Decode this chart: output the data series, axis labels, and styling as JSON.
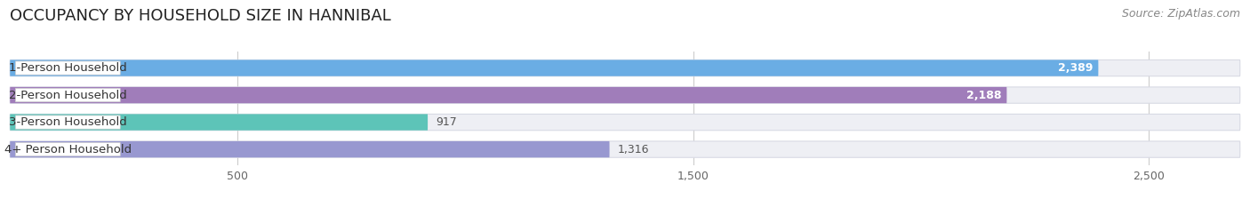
{
  "title": "OCCUPANCY BY HOUSEHOLD SIZE IN HANNIBAL",
  "source": "Source: ZipAtlas.com",
  "categories": [
    "1-Person Household",
    "2-Person Household",
    "3-Person Household",
    "4+ Person Household"
  ],
  "values": [
    2389,
    2188,
    917,
    1316
  ],
  "bar_colors": [
    "#6aade4",
    "#a07dba",
    "#5dc4b8",
    "#9898d0"
  ],
  "label_colors": [
    "white",
    "white",
    "#555555",
    "#555555"
  ],
  "x_ticks": [
    500,
    1500,
    2500
  ],
  "x_min": 0,
  "x_max": 2700,
  "background_color": "#ffffff",
  "bar_background_color": "#eeeff4",
  "bar_bg_edge_color": "#d8dae4",
  "title_fontsize": 13,
  "source_fontsize": 9,
  "bar_label_fontsize": 9,
  "cat_label_fontsize": 9.5
}
